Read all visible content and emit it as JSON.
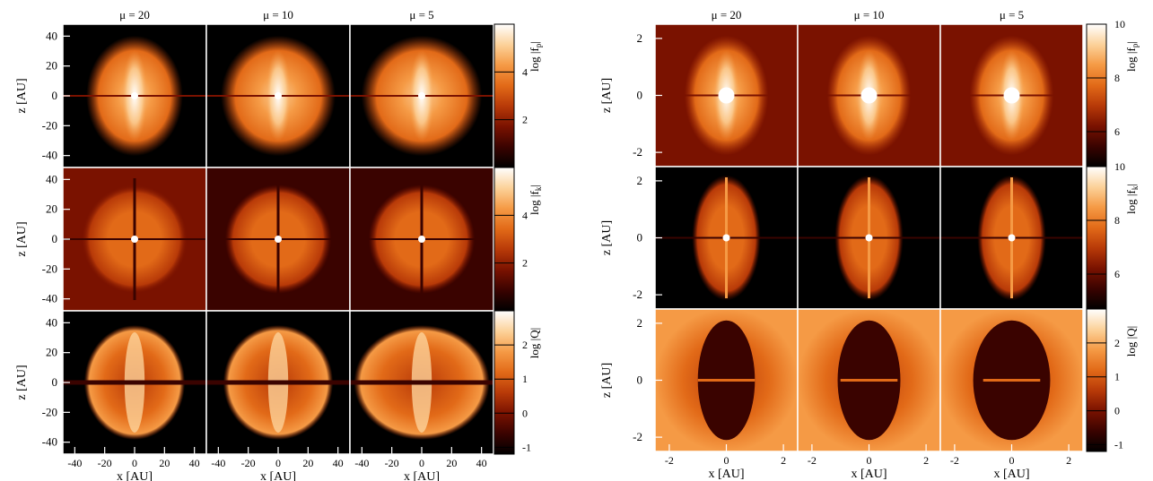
{
  "figure": {
    "colormap": [
      "#000000",
      "#3a0300",
      "#7a1200",
      "#b83a08",
      "#e26a18",
      "#f59a45",
      "#fcd29a",
      "#ffffff"
    ]
  },
  "chart_data": [
    {
      "type": "heatmap",
      "title": "",
      "grid_columns": [
        "μ = 20",
        "μ = 10",
        "μ = 5"
      ],
      "xlabel": "x [AU]",
      "ylabel": "z [AU]",
      "xlim": [
        -48,
        48
      ],
      "ylim": [
        -48,
        48
      ],
      "x_ticks": [
        -40,
        -20,
        0,
        20,
        40
      ],
      "y_ticks": [
        -40,
        -20,
        0,
        20,
        40
      ],
      "rows": [
        {
          "colorbar_label": "log |f_p|",
          "zlim": [
            0,
            6
          ],
          "colorbar_ticks": [
            2,
            4
          ],
          "scale": 1
        },
        {
          "colorbar_label": "log |f_k|",
          "zlim": [
            0,
            6
          ],
          "colorbar_ticks": [
            2,
            4
          ],
          "scale": 1
        },
        {
          "colorbar_label": "log |Q|",
          "zlim": [
            -1.2,
            3
          ],
          "colorbar_ticks": [
            -1,
            0,
            1,
            2
          ],
          "scale": 1
        }
      ]
    },
    {
      "type": "heatmap",
      "title": "",
      "grid_columns": [
        "μ = 20",
        "μ = 10",
        "μ = 5"
      ],
      "xlabel": "x [AU]",
      "ylabel": "z [AU]",
      "xlim": [
        -2.5,
        2.5
      ],
      "ylim": [
        -2.5,
        2.5
      ],
      "x_ticks": [
        -2,
        0,
        2
      ],
      "y_ticks": [
        -2,
        0,
        2
      ],
      "rows": [
        {
          "colorbar_label": "log |f_p|",
          "zlim": [
            4.7,
            10
          ],
          "colorbar_ticks": [
            6,
            8,
            10
          ],
          "scale": 0.12
        },
        {
          "colorbar_label": "log |f_k|",
          "zlim": [
            4.7,
            10
          ],
          "colorbar_ticks": [
            6,
            8,
            10
          ],
          "scale": 0.12
        },
        {
          "colorbar_label": "log |Q|",
          "zlim": [
            -1.2,
            3
          ],
          "colorbar_ticks": [
            -1,
            0,
            1,
            2
          ],
          "scale": 0.12
        }
      ]
    }
  ]
}
